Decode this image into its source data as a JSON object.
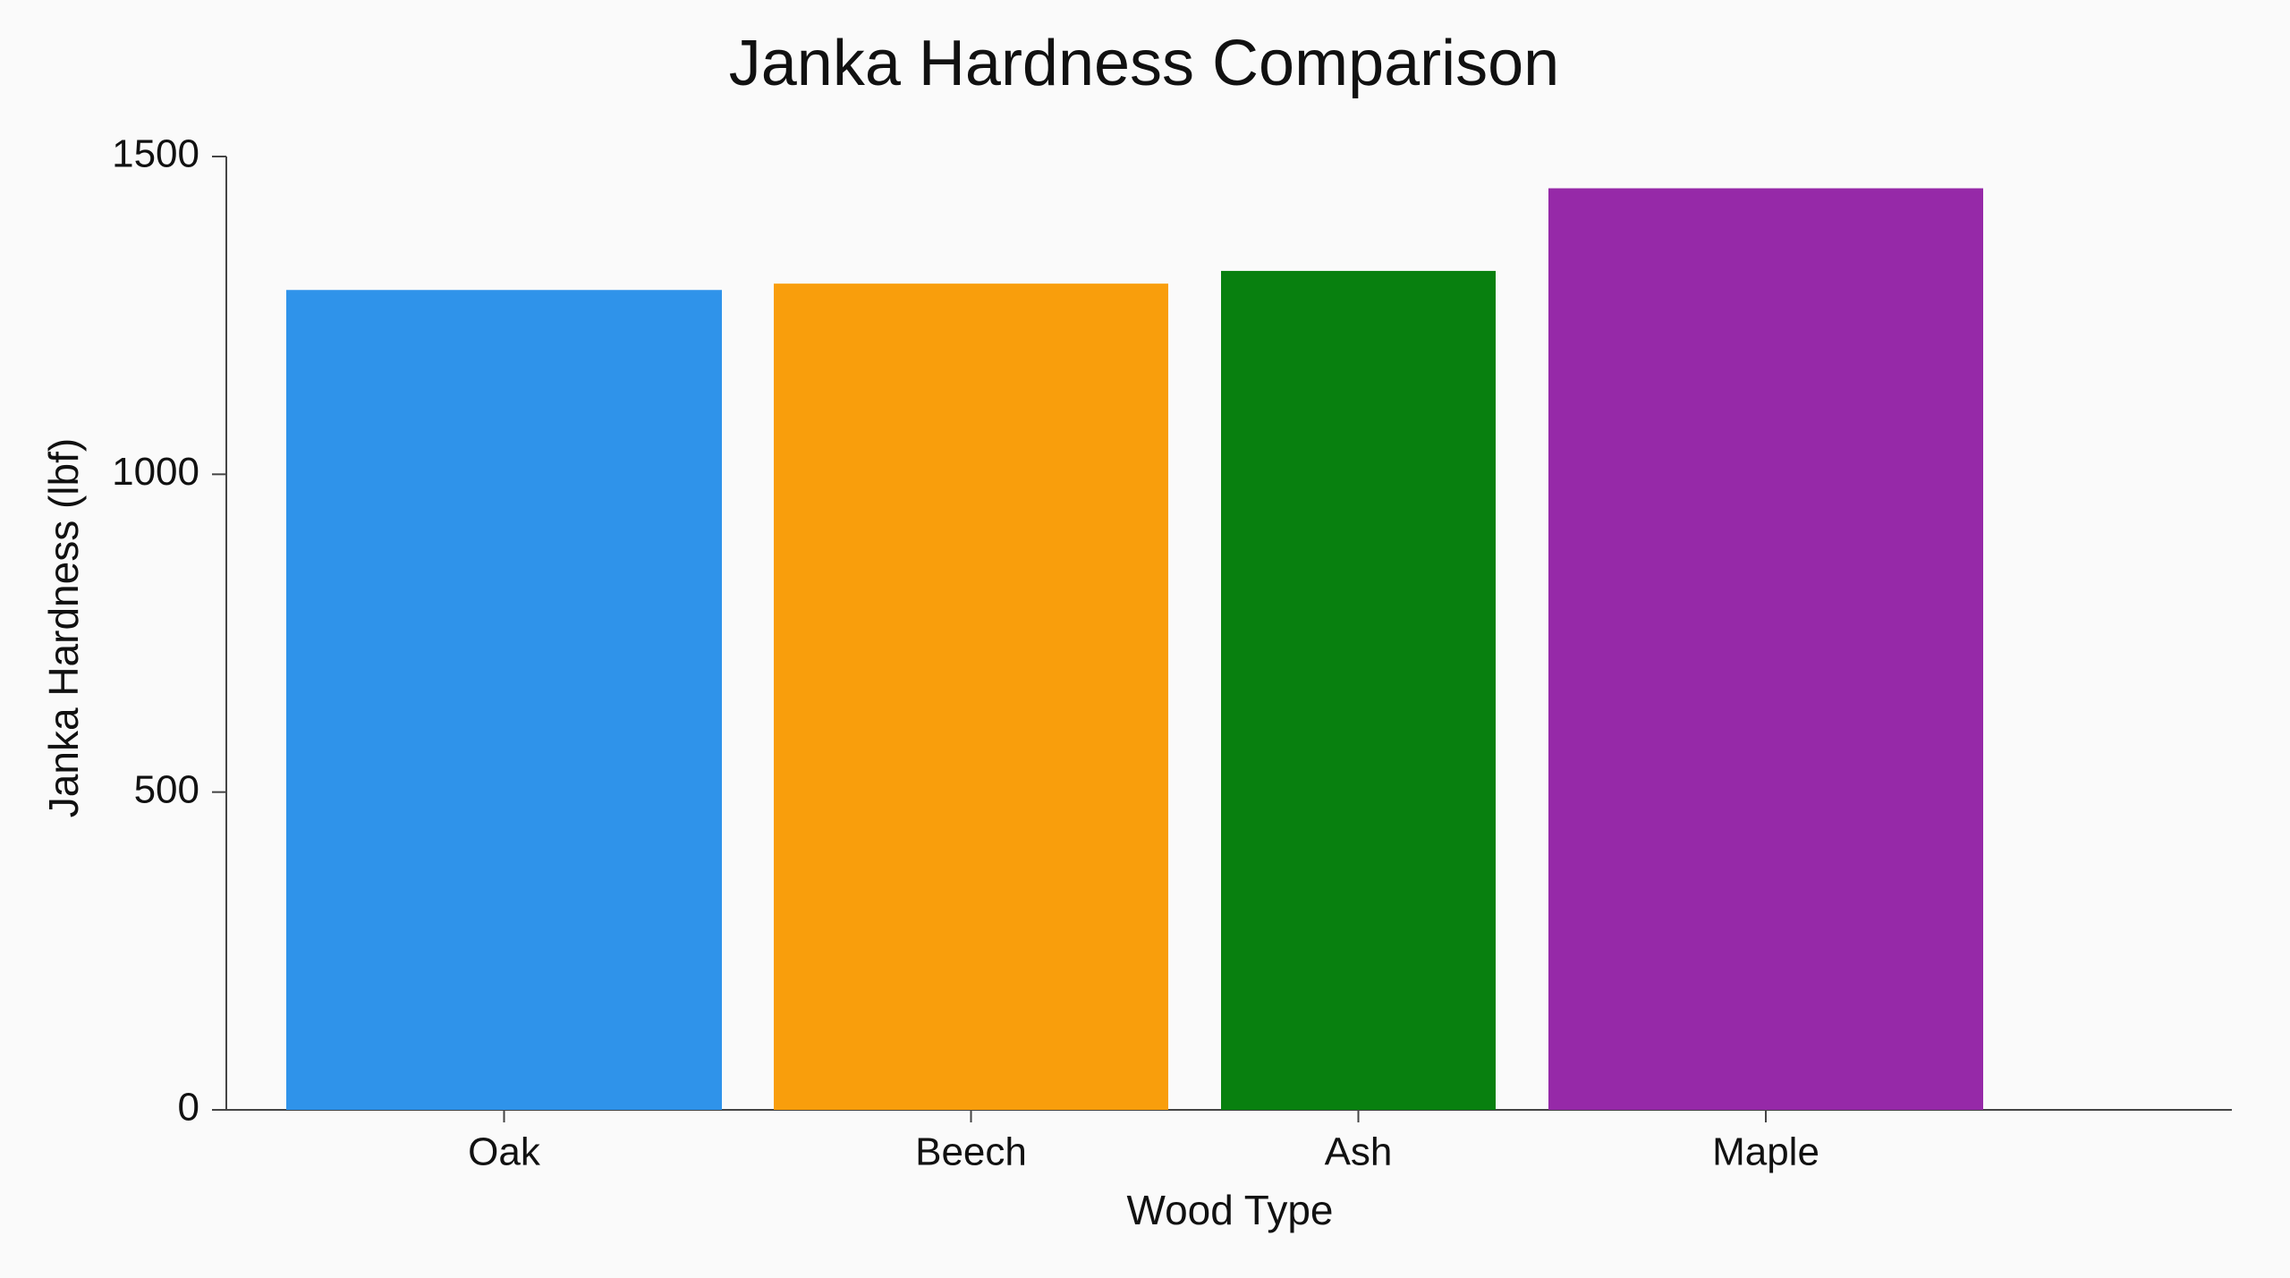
{
  "chart_data": {
    "type": "bar",
    "title": "Janka Hardness Comparison",
    "x_label": "Wood Type",
    "y_label": "Janka Hardness (lbf)",
    "categories": [
      "Oak",
      "Beech",
      "Ash",
      "Maple"
    ],
    "values": [
      1290,
      1300,
      1320,
      1450
    ],
    "colors": [
      "#2f93ea",
      "#f99e0c",
      "#08800f",
      "#9629a8"
    ],
    "ylim": [
      0,
      1500
    ],
    "yticks": [
      0,
      500,
      1000,
      1500
    ],
    "grid": false
  }
}
